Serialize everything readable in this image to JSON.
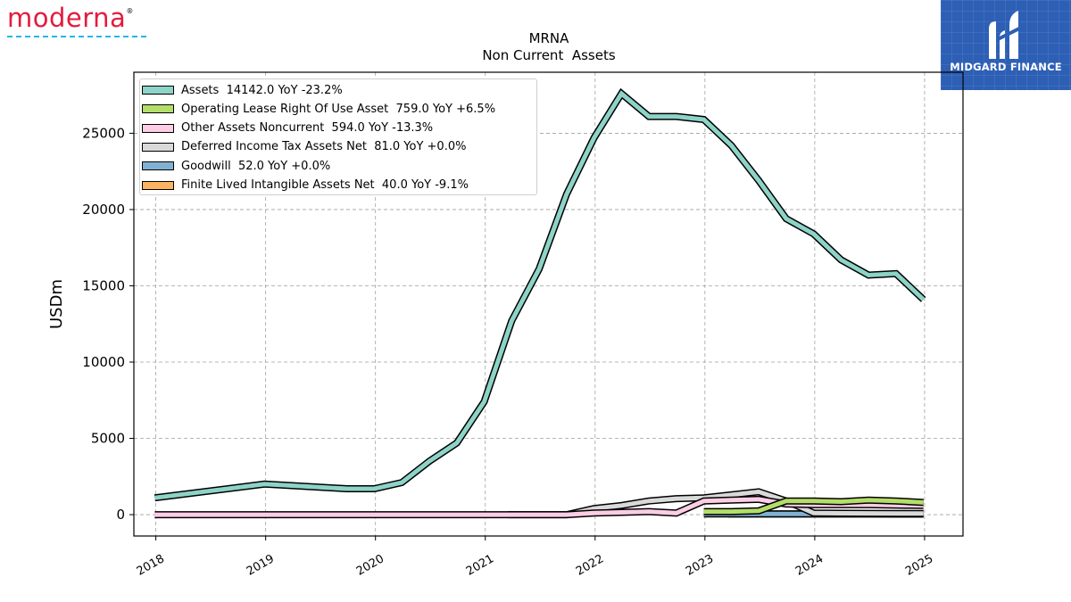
{
  "brand_left": {
    "text": "moderna",
    "mark": "®"
  },
  "brand_right": {
    "name": "MIDGARD FINANCE"
  },
  "chart_data": {
    "type": "line",
    "title": "MRNA",
    "subtitle": "Non Current  Assets",
    "ylabel": "USDm",
    "xlabel": "",
    "xlim": [
      2017.8,
      2025.35
    ],
    "ylim": [
      -1400,
      29000
    ],
    "x_ticks": [
      "2018",
      "2019",
      "2020",
      "2021",
      "2022",
      "2023",
      "2024",
      "2025"
    ],
    "y_ticks": [
      "0",
      "5000",
      "10000",
      "15000",
      "20000",
      "25000"
    ],
    "grid": true,
    "legend_position": "top-left",
    "series": [
      {
        "name": "Assets",
        "legend": "Assets  14142.0 YoY -23.2%",
        "color": "#8dd3c7",
        "x": [
          2017.99,
          2018.99,
          2019.74,
          2019.99,
          2020.24,
          2020.49,
          2020.74,
          2020.99,
          2021.24,
          2021.49,
          2021.74,
          2021.99,
          2022.24,
          2022.49,
          2022.74,
          2022.99,
          2023.24,
          2023.49,
          2023.74,
          2023.99,
          2024.24,
          2024.49,
          2024.74,
          2024.99
        ],
        "y": [
          1100,
          2000,
          1700,
          1700,
          2100,
          3500,
          4700,
          7400,
          12700,
          16100,
          21000,
          24700,
          27600,
          26100,
          26100,
          25900,
          24200,
          21900,
          19400,
          18400,
          16700,
          15700,
          15800,
          14100
        ]
      },
      {
        "name": "Operating Lease Right Of Use Asset",
        "legend": "Operating Lease Right Of Use Asset  759.0 YoY +6.5%",
        "color": "#b3de69",
        "x": [
          2022.99,
          2023.24,
          2023.49,
          2023.74,
          2023.99,
          2024.24,
          2024.49,
          2024.74,
          2024.99
        ],
        "y": [
          200,
          200,
          250,
          900,
          900,
          850,
          950,
          900,
          800
        ]
      },
      {
        "name": "Other Assets Noncurrent",
        "legend": "Other Assets Noncurrent  594.0 YoY -13.3%",
        "color": "#fccde5",
        "x": [
          2017.99,
          2018.99,
          2019.99,
          2020.99,
          2021.74,
          2021.99,
          2022.24,
          2022.49,
          2022.74,
          2022.99,
          2023.24,
          2023.49,
          2023.74,
          2023.99,
          2024.24,
          2024.49,
          2024.74,
          2024.99
        ],
        "y": [
          0,
          0,
          0,
          0,
          0,
          100,
          150,
          200,
          100,
          900,
          950,
          1000,
          700,
          650,
          650,
          650,
          620,
          600
        ]
      },
      {
        "name": "Deferred Income Tax Assets Net",
        "legend": "Deferred Income Tax Assets Net  81.0 YoY +0.0%",
        "color": "#d9d9d9",
        "x": [
          2021.21,
          2021.74,
          2021.99,
          2022.24,
          2022.49,
          2022.74,
          2022.99,
          2023.24,
          2023.49,
          2023.74,
          2023.99,
          2024.24,
          2024.49,
          2024.74,
          2024.99
        ],
        "y": [
          0,
          0,
          400,
          600,
          900,
          1050,
          1100,
          1300,
          1500,
          900,
          100,
          90,
          85,
          80,
          80
        ]
      },
      {
        "name": "Goodwill",
        "legend": "Goodwill  52.0 YoY +0.0%",
        "color": "#80b1d3",
        "x": [
          2022.99,
          2023.24,
          2023.49,
          2023.74,
          2023.99,
          2024.24,
          2024.49,
          2024.74,
          2024.99
        ],
        "y": [
          50,
          50,
          50,
          50,
          52,
          52,
          52,
          52,
          52
        ]
      },
      {
        "name": "Finite Lived Intangible Assets Net",
        "legend": "Finite Lived Intangible Assets Net  40.0 YoY -9.1%",
        "color": "#fdb462",
        "x": [
          2023.21,
          2023.49,
          2023.74,
          2023.99,
          2024.24,
          2024.49,
          2024.74,
          2024.99
        ],
        "y": [
          45,
          44,
          44,
          44,
          43,
          42,
          41,
          40
        ]
      }
    ]
  }
}
